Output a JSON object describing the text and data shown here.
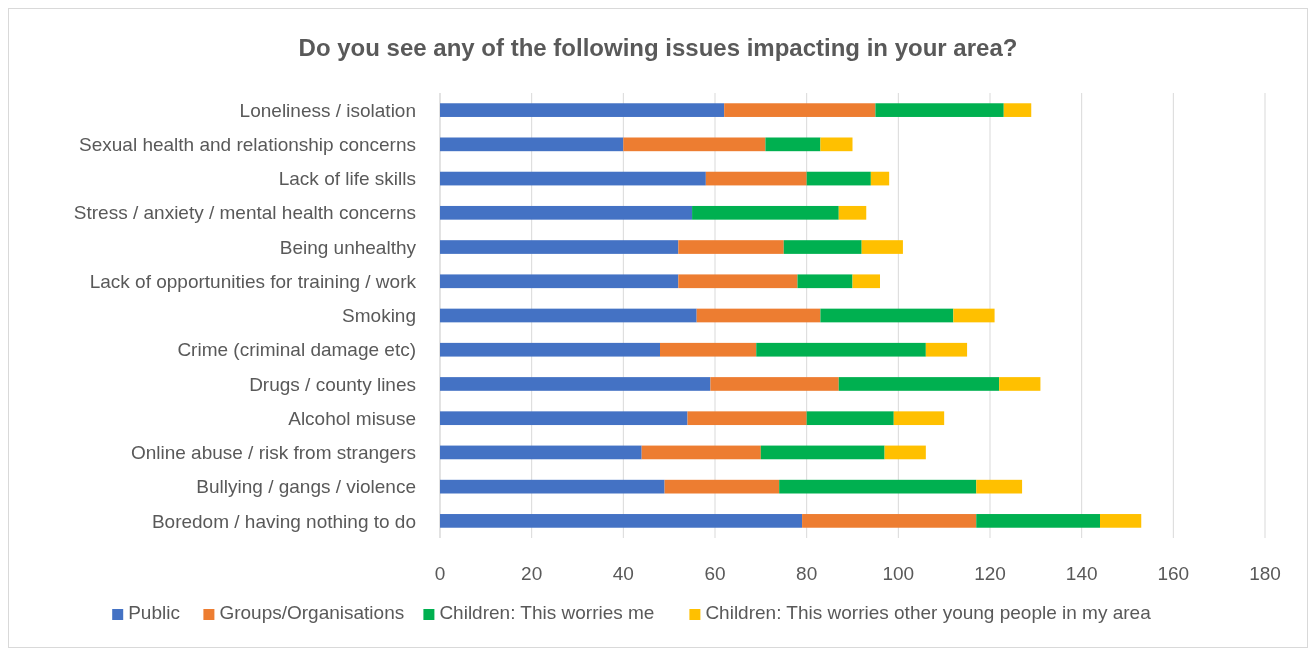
{
  "chart_data": {
    "type": "bar",
    "orientation": "horizontal",
    "stacked": true,
    "title": "Do you see any of the following issues impacting in your area?",
    "categories": [
      "Loneliness / isolation",
      "Sexual health and relationship concerns",
      "Lack of life skills",
      "Stress / anxiety / mental health concerns",
      "Being unhealthy",
      "Lack of opportunities for training / work",
      "Smoking",
      "Crime (criminal damage etc)",
      "Drugs / county lines",
      "Alcohol misuse",
      "Online abuse / risk from strangers",
      "Bullying / gangs / violence",
      "Boredom / having nothing to do"
    ],
    "series": [
      {
        "name": "Public",
        "color": "#4472c4",
        "values": [
          62,
          40,
          58,
          55,
          52,
          52,
          56,
          48,
          59,
          54,
          44,
          49,
          79
        ]
      },
      {
        "name": "Groups/Organisations",
        "color": "#ed7d31",
        "values": [
          33,
          31,
          22,
          0,
          23,
          26,
          27,
          21,
          28,
          26,
          26,
          25,
          38
        ]
      },
      {
        "name": "Children: This worries me",
        "color": "#00b050",
        "values": [
          28,
          12,
          14,
          32,
          17,
          12,
          29,
          37,
          35,
          19,
          27,
          43,
          27
        ]
      },
      {
        "name": "Children: This worries other young people in my area",
        "color": "#ffc000",
        "values": [
          6,
          7,
          4,
          6,
          9,
          6,
          9,
          9,
          9,
          11,
          9,
          10,
          9
        ]
      }
    ],
    "xlim": [
      0,
      180
    ],
    "xticks": [
      0,
      20,
      40,
      60,
      80,
      100,
      120,
      140,
      160,
      180
    ],
    "grid": "x",
    "legend": "bottom"
  }
}
